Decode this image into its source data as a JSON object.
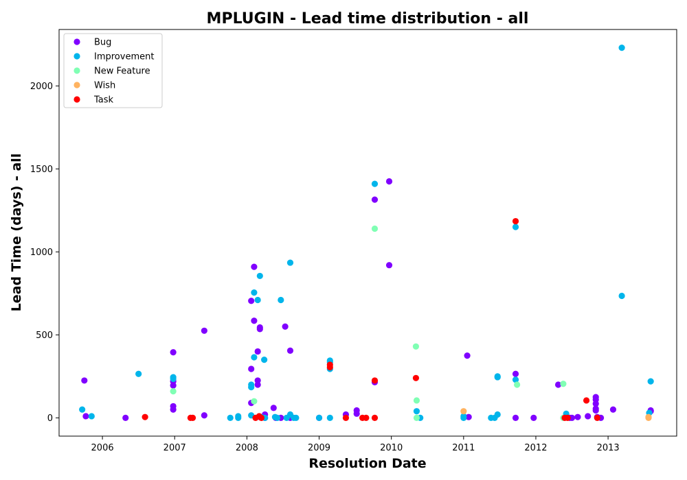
{
  "chart_data": {
    "type": "scatter",
    "title": "MPLUGIN - Lead time distribution - all",
    "xlabel": "Resolution Date",
    "ylabel": "Lead Time (days) - all",
    "xlim": [
      2005.4,
      2013.95
    ],
    "ylim": [
      -110,
      2340
    ],
    "xticks": [
      {
        "value": 2006,
        "label": "2006"
      },
      {
        "value": 2007,
        "label": "2007"
      },
      {
        "value": 2008,
        "label": "2008"
      },
      {
        "value": 2009,
        "label": "2009"
      },
      {
        "value": 2010,
        "label": "2010"
      },
      {
        "value": 2011,
        "label": "2011"
      },
      {
        "value": 2012,
        "label": "2012"
      },
      {
        "value": 2013,
        "label": "2013"
      }
    ],
    "yticks": [
      {
        "value": 0,
        "label": "0"
      },
      {
        "value": 500,
        "label": "500"
      },
      {
        "value": 1000,
        "label": "1000"
      },
      {
        "value": 1500,
        "label": "1500"
      },
      {
        "value": 2000,
        "label": "2000"
      }
    ],
    "grid": false,
    "legend_position": "top-left",
    "series": [
      {
        "name": "Bug",
        "color": "#8000ff",
        "points": [
          [
            2005.75,
            225
          ],
          [
            2005.77,
            10
          ],
          [
            2006.32,
            0
          ],
          [
            2006.98,
            395
          ],
          [
            2006.98,
            220
          ],
          [
            2006.98,
            195
          ],
          [
            2006.98,
            70
          ],
          [
            2006.98,
            50
          ],
          [
            2007.41,
            525
          ],
          [
            2007.41,
            15
          ],
          [
            2008.06,
            705
          ],
          [
            2008.06,
            295
          ],
          [
            2008.06,
            90
          ],
          [
            2008.1,
            910
          ],
          [
            2008.1,
            585
          ],
          [
            2008.15,
            400
          ],
          [
            2008.15,
            225
          ],
          [
            2008.15,
            200
          ],
          [
            2008.18,
            545
          ],
          [
            2008.18,
            535
          ],
          [
            2008.18,
            5
          ],
          [
            2008.25,
            20
          ],
          [
            2008.25,
            0
          ],
          [
            2008.37,
            60
          ],
          [
            2008.4,
            0
          ],
          [
            2008.47,
            0
          ],
          [
            2008.53,
            550
          ],
          [
            2008.6,
            405
          ],
          [
            2008.6,
            0
          ],
          [
            2009.0,
            0
          ],
          [
            2009.37,
            20
          ],
          [
            2009.52,
            45
          ],
          [
            2009.52,
            25
          ],
          [
            2009.77,
            1315
          ],
          [
            2009.77,
            215
          ],
          [
            2009.97,
            1425
          ],
          [
            2009.97,
            920
          ],
          [
            2011.05,
            375
          ],
          [
            2011.07,
            5
          ],
          [
            2011.72,
            265
          ],
          [
            2011.72,
            0
          ],
          [
            2011.97,
            0
          ],
          [
            2012.31,
            200
          ],
          [
            2012.47,
            0
          ],
          [
            2012.5,
            0
          ],
          [
            2012.58,
            5
          ],
          [
            2012.72,
            10
          ],
          [
            2012.83,
            125
          ],
          [
            2012.83,
            110
          ],
          [
            2012.83,
            85
          ],
          [
            2012.83,
            55
          ],
          [
            2012.83,
            45
          ],
          [
            2012.85,
            5
          ],
          [
            2012.9,
            0
          ],
          [
            2013.07,
            50
          ],
          [
            2013.59,
            45
          ],
          [
            2013.59,
            40
          ]
        ]
      },
      {
        "name": "Improvement",
        "color": "#00b5eb",
        "points": [
          [
            2005.72,
            50
          ],
          [
            2005.85,
            10
          ],
          [
            2006.5,
            265
          ],
          [
            2006.98,
            245
          ],
          [
            2006.98,
            235
          ],
          [
            2007.77,
            0
          ],
          [
            2007.88,
            10
          ],
          [
            2007.88,
            0
          ],
          [
            2008.06,
            200
          ],
          [
            2008.06,
            185
          ],
          [
            2008.06,
            15
          ],
          [
            2008.1,
            755
          ],
          [
            2008.1,
            365
          ],
          [
            2008.15,
            710
          ],
          [
            2008.18,
            855
          ],
          [
            2008.2,
            5
          ],
          [
            2008.24,
            350
          ],
          [
            2008.25,
            0
          ],
          [
            2008.39,
            5
          ],
          [
            2008.42,
            0
          ],
          [
            2008.47,
            710
          ],
          [
            2008.55,
            0
          ],
          [
            2008.6,
            935
          ],
          [
            2008.6,
            20
          ],
          [
            2008.65,
            0
          ],
          [
            2008.68,
            0
          ],
          [
            2009.0,
            0
          ],
          [
            2009.15,
            345
          ],
          [
            2009.15,
            335
          ],
          [
            2009.15,
            295
          ],
          [
            2009.15,
            0
          ],
          [
            2009.77,
            1410
          ],
          [
            2010.35,
            40
          ],
          [
            2010.4,
            0
          ],
          [
            2011.0,
            10
          ],
          [
            2011.0,
            0
          ],
          [
            2011.38,
            0
          ],
          [
            2011.43,
            0
          ],
          [
            2011.47,
            20
          ],
          [
            2011.47,
            250
          ],
          [
            2011.47,
            245
          ],
          [
            2011.72,
            1150
          ],
          [
            2011.72,
            230
          ],
          [
            2012.42,
            25
          ],
          [
            2013.19,
            2230
          ],
          [
            2013.19,
            735
          ],
          [
            2013.57,
            30
          ],
          [
            2013.59,
            220
          ]
        ]
      },
      {
        "name": "New Feature",
        "color": "#80ffb4",
        "points": [
          [
            2006.98,
            160
          ],
          [
            2008.1,
            100
          ],
          [
            2009.77,
            1140
          ],
          [
            2010.34,
            430
          ],
          [
            2010.35,
            105
          ],
          [
            2010.35,
            0
          ],
          [
            2011.74,
            200
          ],
          [
            2012.38,
            205
          ],
          [
            2012.38,
            0
          ]
        ]
      },
      {
        "name": "Wish",
        "color": "#ffb360",
        "points": [
          [
            2011.0,
            40
          ],
          [
            2013.56,
            5
          ],
          [
            2013.56,
            0
          ]
        ]
      },
      {
        "name": "Task",
        "color": "#ff0000",
        "points": [
          [
            2006.59,
            5
          ],
          [
            2007.22,
            0
          ],
          [
            2007.25,
            0
          ],
          [
            2008.12,
            0
          ],
          [
            2008.17,
            10
          ],
          [
            2008.2,
            0
          ],
          [
            2009.15,
            320
          ],
          [
            2009.15,
            305
          ],
          [
            2009.37,
            0
          ],
          [
            2009.6,
            0
          ],
          [
            2009.65,
            0
          ],
          [
            2009.77,
            225
          ],
          [
            2009.77,
            0
          ],
          [
            2010.34,
            240
          ],
          [
            2011.72,
            1185
          ],
          [
            2012.4,
            0
          ],
          [
            2012.44,
            0
          ],
          [
            2012.7,
            105
          ],
          [
            2012.85,
            0
          ]
        ]
      }
    ]
  }
}
